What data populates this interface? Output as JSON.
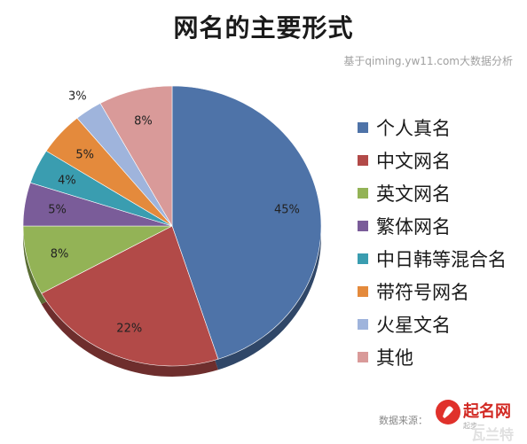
{
  "chart_data": {
    "type": "pie",
    "title": "网名的主要形式",
    "subtitle": "基于qiming.yw11.com大数据分析",
    "slices": [
      {
        "label": "个人真名",
        "value": 45,
        "display": "45%",
        "color": "#4e73a8"
      },
      {
        "label": "中文网名",
        "value": 22,
        "display": "22%",
        "color": "#b24a48"
      },
      {
        "label": "英文网名",
        "value": 8,
        "display": "8%",
        "color": "#93b356"
      },
      {
        "label": "繁体网名",
        "value": 5,
        "display": "5%",
        "color": "#7a5c99"
      },
      {
        "label": "中日韩等混合名",
        "value": 4,
        "display": "4%",
        "color": "#3a9db0"
      },
      {
        "label": "带符号网名",
        "value": 5,
        "display": "5%",
        "color": "#e48a3c"
      },
      {
        "label": "火星文名",
        "value": 3,
        "display": "3%",
        "color": "#9fb4dc"
      },
      {
        "label": "其他",
        "value": 8,
        "display": "8%",
        "color": "#d99a99"
      }
    ],
    "legend_position": "right"
  },
  "footer": {
    "source_label": "数据来源：",
    "logo_text": "起名网",
    "logo_subtext": "起步一",
    "watermark": "瓦兰特"
  }
}
